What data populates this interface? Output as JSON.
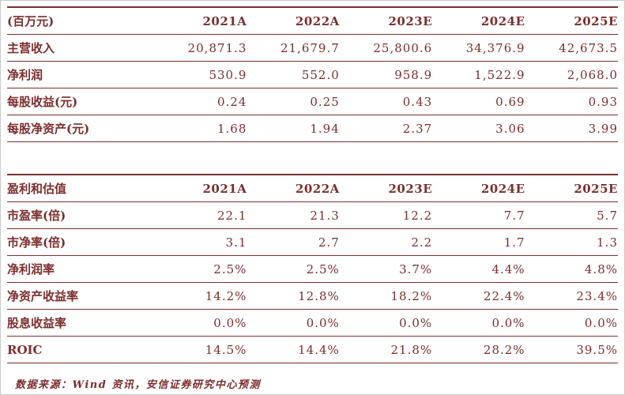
{
  "styles": {
    "accent": "#7C2D2D",
    "background": "#ffffff",
    "frame_border": "#c9c9c9"
  },
  "tables": [
    {
      "id": "income-forecast-table",
      "header": [
        "(百万元)",
        "2021A",
        "2022A",
        "2023E",
        "2024E",
        "2025E"
      ],
      "rows": [
        [
          "主营收入",
          "20,871.3",
          "21,679.7",
          "25,800.6",
          "34,376.9",
          "42,673.5"
        ],
        [
          "净利润",
          "530.9",
          "552.0",
          "958.9",
          "1,522.9",
          "2,068.0"
        ],
        [
          "每股收益(元)",
          "0.24",
          "0.25",
          "0.43",
          "0.69",
          "0.93"
        ],
        [
          "每股净资产(元)",
          "1.68",
          "1.94",
          "2.37",
          "3.06",
          "3.99"
        ]
      ]
    },
    {
      "id": "valuation-table",
      "header": [
        "盈利和估值",
        "2021A",
        "2022A",
        "2023E",
        "2024E",
        "2025E"
      ],
      "rows": [
        [
          "市盈率(倍)",
          "22.1",
          "21.3",
          "12.2",
          "7.7",
          "5.7"
        ],
        [
          "市净率(倍)",
          "3.1",
          "2.7",
          "2.2",
          "1.7",
          "1.3"
        ],
        [
          "净利润率",
          "2.5%",
          "2.5%",
          "3.7%",
          "4.4%",
          "4.8%"
        ],
        [
          "净资产收益率",
          "14.2%",
          "12.8%",
          "18.2%",
          "22.4%",
          "23.4%"
        ],
        [
          "股息收益率",
          "0.0%",
          "0.0%",
          "0.0%",
          "0.0%",
          "0.0%"
        ],
        [
          "ROIC",
          "14.5%",
          "14.4%",
          "21.8%",
          "28.2%",
          "39.5%"
        ]
      ]
    }
  ],
  "footer": {
    "source_note": "数据来源：Wind 资讯，安信证券研究中心预测"
  }
}
